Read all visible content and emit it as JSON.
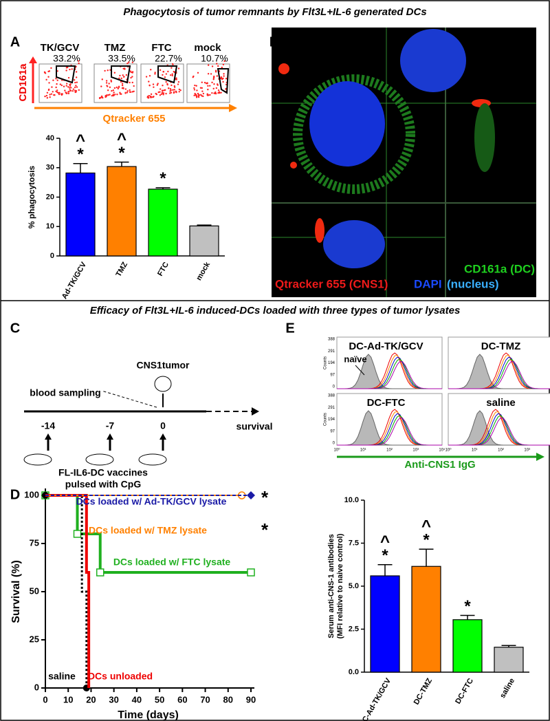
{
  "sections": [
    "Phagocytosis of tumor remnants by Flt3L+IL-6 generated DCs",
    "Efficacy of Flt3L+IL-6 induced-DCs loaded with three types of tumor lysates"
  ],
  "panel_labels": [
    "A",
    "B",
    "C",
    "D",
    "E"
  ],
  "flow": {
    "plots": [
      {
        "label": "TK/GCV",
        "percent": "33.2%"
      },
      {
        "label": "TMZ",
        "percent": "33.5%"
      },
      {
        "label": "FTC",
        "percent": "22.7%"
      },
      {
        "label": "mock",
        "percent": "10.7%"
      }
    ],
    "y_label": "CD161a",
    "x_label": "Qtracker 655"
  },
  "microscopy": {
    "dc_label": "CD161a (DC)",
    "tumor_label": "Qtracker 655 (CNS1)",
    "nucleus_label": "DAPI",
    "nucleus_note": "(nucleus)"
  },
  "timeline": {
    "tumor": "CNS1tumor",
    "blood": "blood sampling",
    "days": [
      "-14",
      "-7",
      "0"
    ],
    "end": "survival",
    "vaccine": "FL-IL6-DC vaccines",
    "vaccine_note": "pulsed with CpG"
  },
  "histograms": {
    "panels": [
      "DC-Ad-TK/GCV",
      "DC-TMZ",
      "DC-FTC",
      "saline"
    ],
    "naive": "naïve",
    "y_label": "Counts",
    "yticks": [
      "388",
      "291",
      "194",
      "97",
      "0"
    ],
    "xticks": [
      "10⁰",
      "10¹",
      "10²",
      "10³",
      "10⁴"
    ],
    "x_label": "Anti-CNS1 IgG"
  },
  "chart_data": [
    {
      "type": "bar",
      "y_label": "% phagocytosis",
      "categories": [
        "Ad-TK/GCV",
        "TMZ",
        "FTC",
        "mock"
      ],
      "values": [
        28.2,
        30.4,
        22.7,
        10.2
      ],
      "errors": [
        3.2,
        1.5,
        0.5,
        0.3
      ],
      "colors": [
        "#0000ff",
        "#ff8000",
        "#00ff00",
        "#c0c0c0"
      ],
      "significance": [
        [
          "^",
          "*"
        ],
        [
          "^",
          "*"
        ],
        [
          "*"
        ],
        null
      ],
      "ylim": [
        0,
        40
      ],
      "yticks": [
        0,
        10,
        20,
        30,
        40
      ]
    },
    {
      "type": "step",
      "x_label": "Time (days)",
      "y_label": "Survival (%)",
      "series": [
        {
          "name": "DCs loaded w/ Ad-TK/GCV lysate",
          "color": "#1a1aa6",
          "x": [
            0,
            90
          ],
          "values": [
            100,
            100
          ],
          "note": "*"
        },
        {
          "name": "DCs loaded w/ TMZ lysate",
          "color": "#ff8000",
          "x": [
            0,
            86
          ],
          "values": [
            100,
            100
          ],
          "note": "*"
        },
        {
          "name": "DCs loaded w/ FTC lysate",
          "color": "#1fb01f",
          "x": [
            0,
            14,
            14,
            24,
            24,
            90
          ],
          "values": [
            100,
            100,
            80,
            80,
            60,
            60
          ]
        },
        {
          "name": "saline",
          "color": "#000000",
          "x": [
            0,
            16,
            16,
            18,
            18
          ],
          "values": [
            100,
            100,
            50,
            50,
            0
          ]
        },
        {
          "name": "DCs unloaded",
          "color": "#ee0000",
          "x": [
            0,
            18,
            18,
            19,
            19
          ],
          "values": [
            100,
            100,
            60,
            60,
            0
          ]
        }
      ],
      "xlim": [
        0,
        90
      ],
      "xticks": [
        0,
        10,
        20,
        30,
        40,
        50,
        60,
        70,
        80,
        90
      ],
      "ylim": [
        0,
        100
      ],
      "yticks": [
        0,
        25,
        50,
        75,
        100
      ]
    },
    {
      "type": "bar",
      "y_label": "Serum anti-CNS-1 antibodies",
      "y_label_note": "(MFI relative to naive control)",
      "categories": [
        "DC-Ad-TK/GCV",
        "DC-TMZ",
        "DC-FTC",
        "saline"
      ],
      "values": [
        5.6,
        6.15,
        3.05,
        1.45
      ],
      "errors": [
        0.65,
        1.0,
        0.25,
        0.1
      ],
      "colors": [
        "#0000ff",
        "#ff8000",
        "#00ff00",
        "#c0c0c0"
      ],
      "significance": [
        [
          "^",
          "*"
        ],
        [
          "^",
          "*"
        ],
        [
          "*"
        ],
        null
      ],
      "ylim": [
        0,
        10
      ],
      "yticks": [
        {
          "value": 0,
          "label": "0.0"
        },
        {
          "value": 2.5,
          "label": "2.5"
        },
        {
          "value": 5,
          "label": "5.0"
        },
        {
          "value": 7.5,
          "label": "7.5"
        },
        {
          "value": 10,
          "label": "10.0"
        }
      ]
    }
  ]
}
